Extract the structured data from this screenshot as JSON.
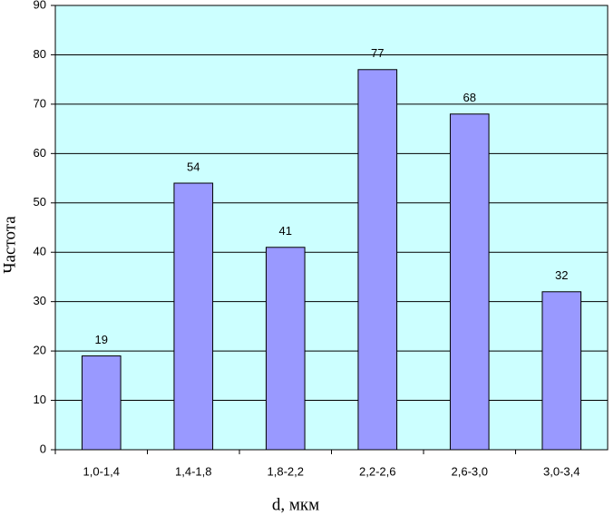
{
  "chart_data": {
    "type": "bar",
    "x_label": "d, мкм",
    "y_label": "Частота",
    "categories": [
      "1,0-1,4",
      "1,4-1,8",
      "1,8-2,2",
      "2,2-2,6",
      "2,6-3,0",
      "3,0-3,4"
    ],
    "values": [
      19,
      54,
      41,
      77,
      68,
      32
    ],
    "color": "#9999ff",
    "background": "#ccffff",
    "ylim": [
      0,
      90
    ],
    "yticks": [
      0,
      10,
      20,
      30,
      40,
      50,
      60,
      70,
      80,
      90
    ],
    "grid": true
  }
}
